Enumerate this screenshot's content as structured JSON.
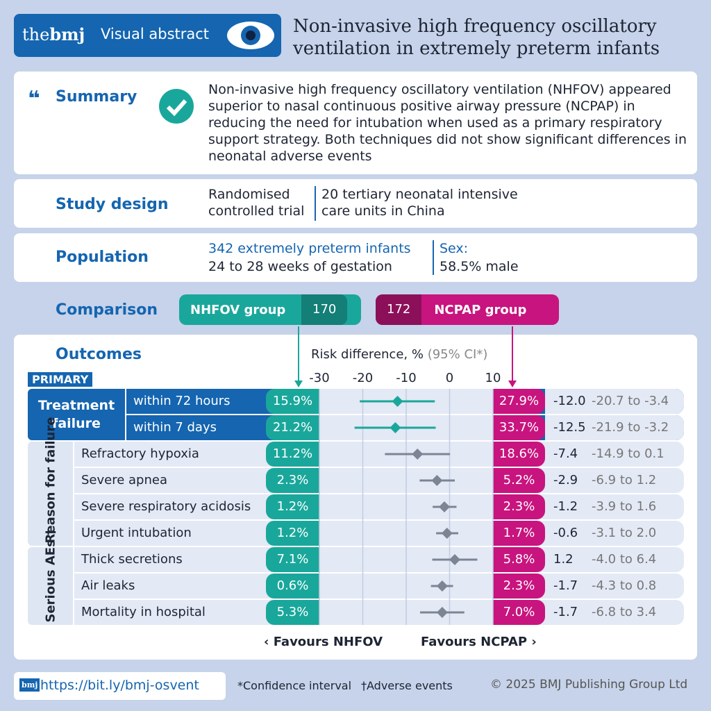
{
  "header": {
    "brand_the": "the",
    "brand_bmj": "bmj",
    "tag": "Visual abstract",
    "title": "Non-invasive high frequency oscillatory ventilation in extremely preterm infants"
  },
  "summary": {
    "label": "Summary",
    "text": "Non-invasive high frequency oscillatory ventilation (NHFOV) appeared superior to nasal continuous positive airway pressure (NCPAP) in reducing the need for intubation when used as a primary respiratory support strategy. Both techniques did not show significant differences in neonatal adverse events"
  },
  "study_design": {
    "label": "Study design",
    "items": [
      "Randomised controlled trial",
      "20 tertiary neonatal intensive care units in China"
    ]
  },
  "population": {
    "label": "Population",
    "count": "342 extremely preterm infants",
    "gestation": "24 to 28 weeks of gestation",
    "sex_label": "Sex:",
    "sex_value": "58.5% male"
  },
  "comparison": {
    "label": "Comparison",
    "groups": [
      {
        "name": "NHFOV group",
        "n": 170
      },
      {
        "name": "NCPAP group",
        "n": 172
      }
    ]
  },
  "outcomes": {
    "label": "Outcomes",
    "primary_label": "PRIMARY",
    "axis": {
      "title": "Risk difference, %",
      "ci_note": "(95% CI*)",
      "xlim": [
        -30,
        10
      ],
      "xticks": [
        -30,
        -20,
        -10,
        0,
        10
      ]
    },
    "groups": [
      {
        "label": "Treatment failure",
        "rows": [
          {
            "name": "within 72 hours",
            "nhfov": "15.9%",
            "ncpap": "27.9%",
            "rd": {
              "value": -12,
              "label": "-12.0"
            },
            "ci": {
              "low": -20.7,
              "high": -3.4,
              "label": "-20.7 to -3.4"
            }
          },
          {
            "name": "within 7 days",
            "nhfov": "21.2%",
            "ncpap": "33.7%",
            "rd": -12.5,
            "ci": {
              "low": -21.9,
              "high": -3.2,
              "label": "-21.9 to -3.2"
            }
          }
        ]
      },
      {
        "label": "Reason for failure",
        "rows": [
          {
            "name": "Refractory hypoxia",
            "nhfov": "11.2%",
            "ncpap": "18.6%",
            "rd": -7.4,
            "ci": {
              "low": -14.9,
              "high": 0.1,
              "label": "-14.9 to 0.1"
            }
          },
          {
            "name": "Severe apnea",
            "nhfov": "2.3%",
            "ncpap": "5.2%",
            "rd": -2.9,
            "ci": {
              "low": -6.9,
              "high": 1.2,
              "label": "-6.9 to 1.2"
            }
          },
          {
            "name": "Severe respiratory acidosis",
            "nhfov": "1.2%",
            "ncpap": "2.3%",
            "rd": -1.2,
            "ci": {
              "low": -3.9,
              "high": 1.6,
              "label": "-3.9 to 1.6"
            }
          },
          {
            "name": "Urgent intubation",
            "nhfov": "1.2%",
            "ncpap": "1.7%",
            "rd": -0.6,
            "ci": {
              "low": -3.1,
              "high": 2,
              "label": "-3.1 to 2.0"
            }
          }
        ]
      },
      {
        "label": "Serious AEs †",
        "rows": [
          {
            "name": "Thick secretions",
            "nhfov": "7.1%",
            "ncpap": "5.8%",
            "rd": 1.2,
            "ci": {
              "low": -4,
              "high": 6.4,
              "label": "-4.0 to 6.4"
            }
          },
          {
            "name": "Air leaks",
            "nhfov": "0.6%",
            "ncpap": "2.3%",
            "rd": -1.7,
            "ci": {
              "low": -4.3,
              "high": 0.8,
              "label": "-4.3 to 0.8"
            }
          },
          {
            "name": "Mortality in hospital",
            "nhfov": "5.3%",
            "ncpap": "7.0%",
            "rd": -1.7,
            "ci": {
              "low": -6.8,
              "high": 3.4,
              "label": "-6.8 to 3.4"
            }
          }
        ]
      }
    ],
    "favours_left": "Favours NHFOV",
    "favours_right": "Favours NCPAP"
  },
  "footer": {
    "logo": "bmj",
    "url": "https://bit.ly/bmj-osvent",
    "note_ci": "*Confidence interval",
    "note_ae": "†Adverse events",
    "copyright": "© 2025 BMJ Publishing Group Ltd"
  }
}
